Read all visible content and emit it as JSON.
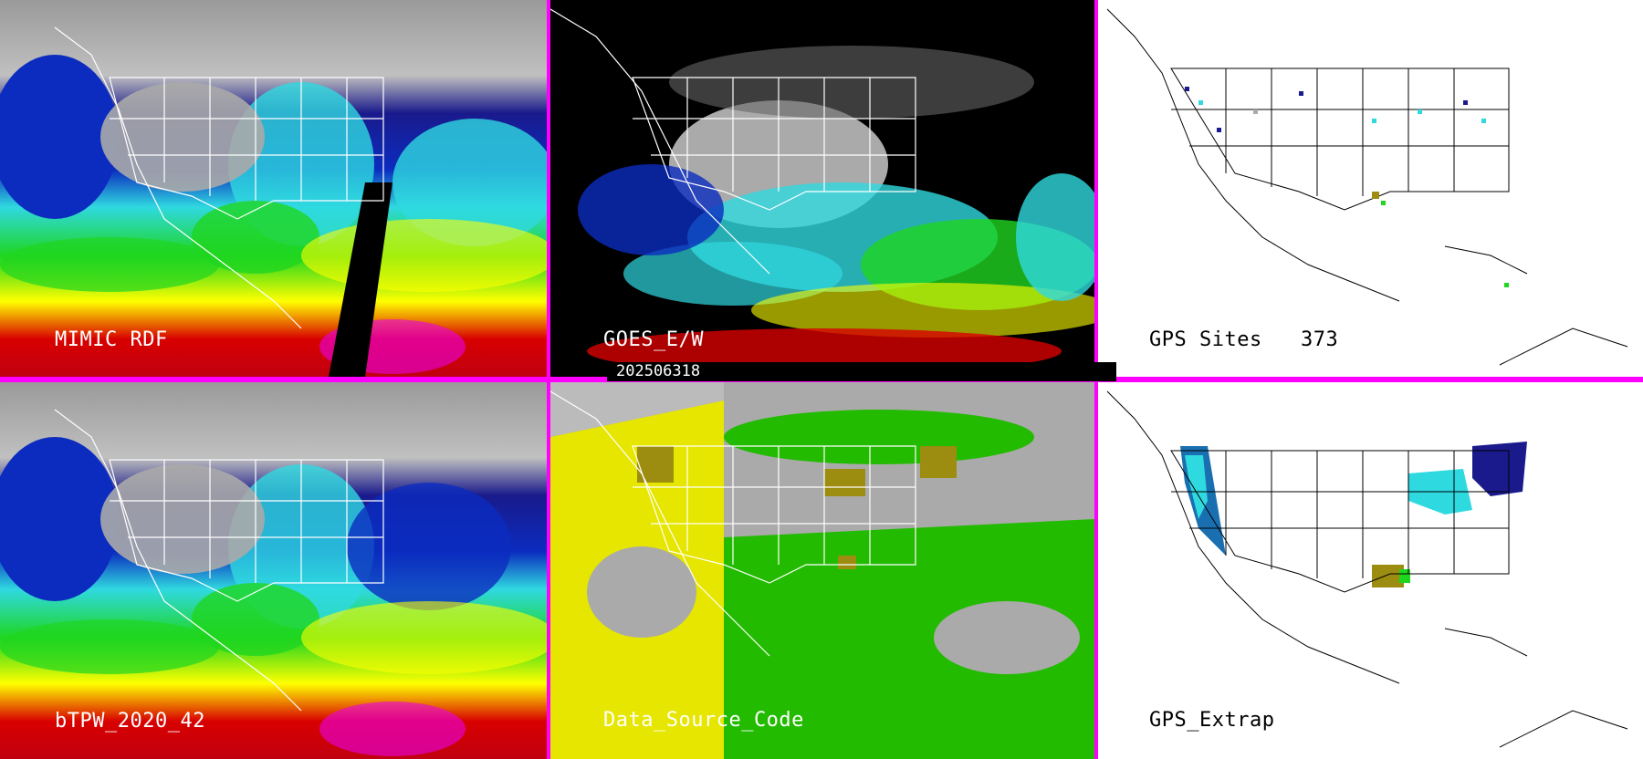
{
  "panels": [
    {
      "id": "mimic-rdf",
      "label": "MIMIC RDF"
    },
    {
      "id": "goes-ew",
      "label": "GOES_E/W"
    },
    {
      "id": "gps-sites",
      "label": "GPS Sites",
      "count": "373"
    },
    {
      "id": "btpw",
      "label": "bTPW_2020_42"
    },
    {
      "id": "data-source",
      "label": "Data_Source_Code"
    },
    {
      "id": "gps-extrap",
      "label": "GPS_Extrap"
    }
  ],
  "timestamp": "202506318",
  "colors": {
    "divider": "#ff00ff",
    "pw_ramp": [
      "#ffffff",
      "#aaaaaa",
      "#1a1a8c",
      "#0b2cbf",
      "#2fd9e0",
      "#1fd61f",
      "#ffff00",
      "#d80000",
      "#e800e8"
    ],
    "source_yellow": "#e6e600",
    "source_green": "#22bb00",
    "source_olive": "#9c8c10",
    "source_gray": "#aaaaaa"
  },
  "icons": [
    "north-america-coastline",
    "us-state-boundaries"
  ]
}
